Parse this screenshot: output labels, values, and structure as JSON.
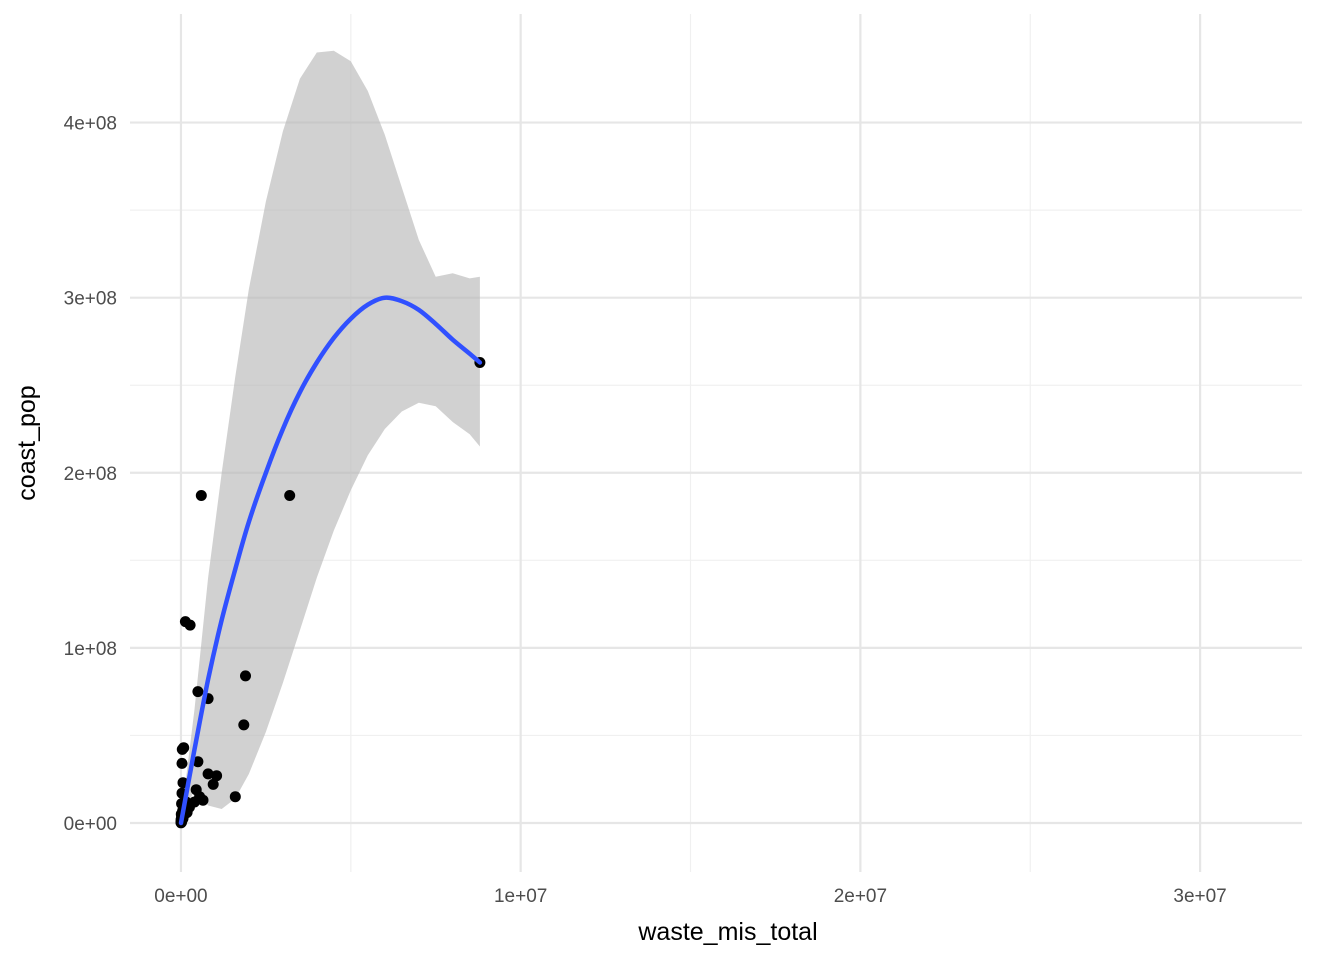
{
  "chart_data": {
    "type": "scatter",
    "title": "",
    "xlabel": "waste_mis_total",
    "ylabel": "coast_pop",
    "xlim": [
      -1500000,
      33000000
    ],
    "ylim": [
      -28000000,
      462000000
    ],
    "x_ticks": [
      0,
      10000000,
      20000000,
      30000000
    ],
    "x_tick_labels": [
      "0e+00",
      "1e+07",
      "2e+07",
      "3e+07"
    ],
    "x_minor_ticks": [
      5000000,
      15000000,
      25000000
    ],
    "y_ticks": [
      0,
      100000000,
      200000000,
      300000000,
      400000000
    ],
    "y_tick_labels": [
      "0e+00",
      "1e+08",
      "2e+08",
      "3e+08",
      "4e+08"
    ],
    "y_minor_ticks": [
      50000000,
      150000000,
      250000000,
      350000000
    ],
    "grid": true,
    "legend": "none",
    "colors": {
      "points": "#000000",
      "smooth_line": "#3050ff",
      "ribbon": "#b8b8b8",
      "grid_major": "#e6e6e6",
      "grid_minor": "#f0f0f0",
      "tick_text": "#4d4d4d"
    },
    "points": [
      {
        "x": 8800000,
        "y": 263000000
      },
      {
        "x": 3200000,
        "y": 187000000
      },
      {
        "x": 600000,
        "y": 187000000
      },
      {
        "x": 130000,
        "y": 115000000
      },
      {
        "x": 270000,
        "y": 113000000
      },
      {
        "x": 1900000,
        "y": 84000000
      },
      {
        "x": 500000,
        "y": 75000000
      },
      {
        "x": 800000,
        "y": 71000000
      },
      {
        "x": 1850000,
        "y": 56000000
      },
      {
        "x": 80000,
        "y": 43000000
      },
      {
        "x": 40000,
        "y": 42000000
      },
      {
        "x": 500000,
        "y": 35000000
      },
      {
        "x": 30000,
        "y": 34000000
      },
      {
        "x": 800000,
        "y": 28000000
      },
      {
        "x": 1050000,
        "y": 27000000
      },
      {
        "x": 950000,
        "y": 22000000
      },
      {
        "x": 60000,
        "y": 23000000
      },
      {
        "x": 450000,
        "y": 19000000
      },
      {
        "x": 30000,
        "y": 17000000
      },
      {
        "x": 550000,
        "y": 15000000
      },
      {
        "x": 1600000,
        "y": 15000000
      },
      {
        "x": 650000,
        "y": 13000000
      },
      {
        "x": 150000,
        "y": 12000000
      },
      {
        "x": 400000,
        "y": 12000000
      },
      {
        "x": 20000,
        "y": 11000000
      },
      {
        "x": 250000,
        "y": 9000000
      },
      {
        "x": 120000,
        "y": 8000000
      },
      {
        "x": 50000,
        "y": 7000000
      },
      {
        "x": 180000,
        "y": 6000000
      },
      {
        "x": 10000,
        "y": 5000000
      },
      {
        "x": 90000,
        "y": 4500000
      },
      {
        "x": 20000,
        "y": 3500000
      },
      {
        "x": 60000,
        "y": 2500000
      },
      {
        "x": 5000,
        "y": 2000000
      },
      {
        "x": 30000,
        "y": 1500000
      },
      {
        "x": 10000,
        "y": 1000000
      },
      {
        "x": 2000,
        "y": 500000
      },
      {
        "x": 15000,
        "y": 300000
      },
      {
        "x": 1000,
        "y": 100000
      }
    ],
    "smooth": {
      "method": "loess",
      "x": [
        0,
        400000,
        800000,
        1200000,
        1600000,
        2000000,
        2500000,
        3000000,
        3500000,
        4000000,
        4500000,
        5000000,
        5500000,
        6000000,
        6500000,
        7000000,
        7500000,
        8000000,
        8500000,
        8800000
      ],
      "y": [
        0,
        42000000,
        82000000,
        116000000,
        145000000,
        172000000,
        200000000,
        225000000,
        246000000,
        263000000,
        277000000,
        288000000,
        296000000,
        300000000,
        298000000,
        293000000,
        285000000,
        276000000,
        268000000,
        263000000
      ],
      "ymax": [
        2000000,
        65000000,
        140000000,
        200000000,
        255000000,
        305000000,
        355000000,
        395000000,
        425000000,
        440000000,
        441000000,
        435000000,
        418000000,
        393000000,
        363000000,
        333000000,
        312000000,
        314000000,
        311000000,
        312000000
      ],
      "ymin": [
        -2000000,
        20000000,
        10000000,
        8000000,
        14000000,
        28000000,
        52000000,
        80000000,
        110000000,
        140000000,
        167000000,
        190000000,
        210000000,
        225000000,
        235000000,
        240000000,
        238000000,
        229000000,
        222000000,
        215000000
      ]
    }
  }
}
